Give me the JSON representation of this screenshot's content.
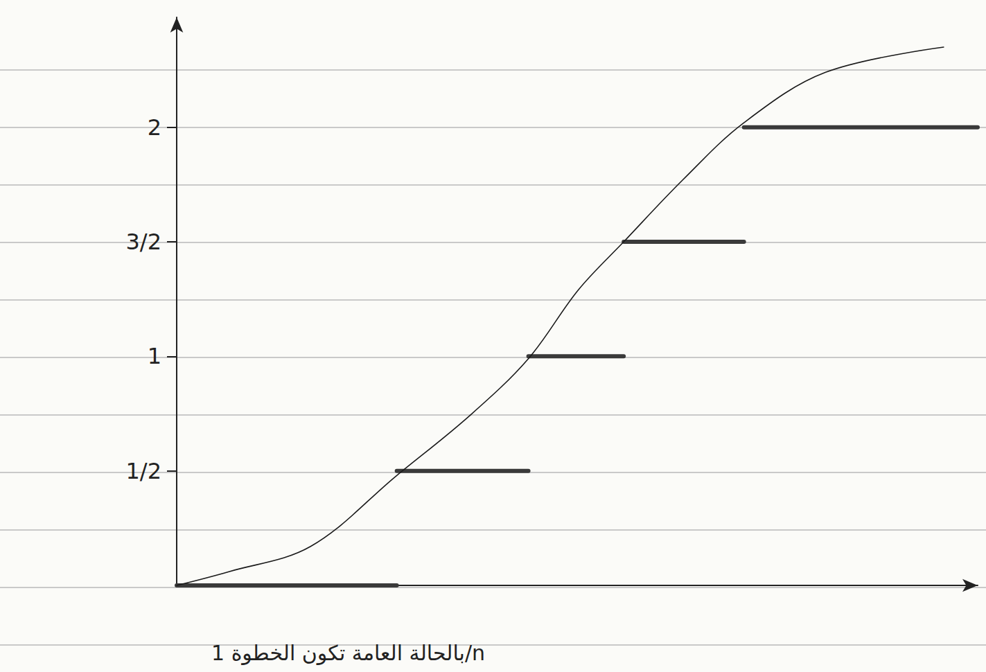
{
  "chart_data": {
    "type": "line",
    "annotation": "بالحالة العامة تكون الخطوة 1/n",
    "xlim": [
      0,
      3.53
    ],
    "xticks": [],
    "ylim": [
      0,
      2.48
    ],
    "yticks": [
      {
        "value": 0.5,
        "label": "1/2"
      },
      1,
      {
        "value": 1.5,
        "label": "3/2"
      },
      2
    ],
    "grid": false,
    "tick_labels": "y",
    "series": [
      {
        "color": "#1a1a1a",
        "line_style": "solid",
        "marker": "none",
        "x": [
          0,
          0.23,
          0.59,
          0.97,
          1.29,
          1.55,
          1.77,
          1.97,
          2.23,
          2.5,
          2.86,
          3.38
        ],
        "values": [
          0,
          0.06,
          0.17,
          0.48,
          0.74,
          0.99,
          1.29,
          1.5,
          1.77,
          2.02,
          2.24,
          2.35
        ]
      },
      {
        "color": "#3a3a3a",
        "line_style": "solid",
        "marker": "none",
        "x": [
          0,
          0.97,
          0.97,
          0.97,
          1.55,
          1.55,
          1.55,
          1.97,
          1.97,
          1.97,
          2.5,
          2.5,
          2.5,
          3.53
        ],
        "values": [
          0,
          0,
          null,
          0.5,
          0.5,
          null,
          1,
          1,
          null,
          1.5,
          1.5,
          null,
          2,
          2
        ]
      }
    ]
  }
}
